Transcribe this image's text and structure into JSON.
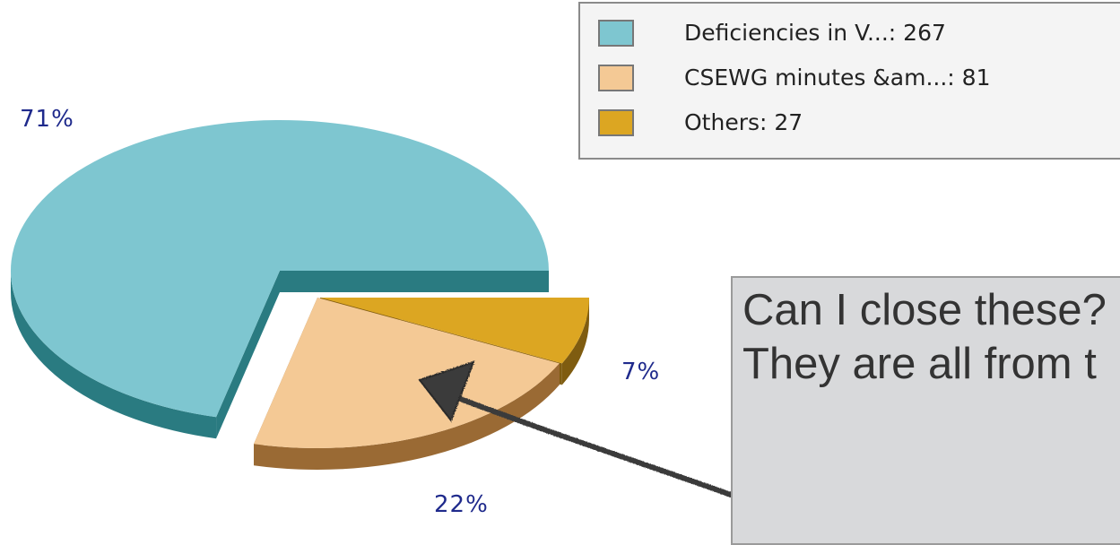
{
  "chart_data": {
    "type": "pie",
    "style": "3d-exploded",
    "slices": [
      {
        "label": "Deficiencies in V...",
        "value": 267,
        "percent_label": "71%",
        "color": "#7ec6d0",
        "dark": "#2a7b81"
      },
      {
        "label": "CSEWG minutes &am...",
        "value": 81,
        "percent_label": "22%",
        "color": "#f4c995",
        "dark": "#9a6a34"
      },
      {
        "label": "Others",
        "value": 27,
        "percent_label": "7%",
        "color": "#dca622",
        "dark": "#7f5c10"
      }
    ],
    "legend": {
      "position": "top-right",
      "entries": [
        "Deficiencies in V...: 267",
        "CSEWG minutes &am...: 81",
        "Others: 27"
      ]
    }
  },
  "callout": {
    "text": "Can I close these? They are all from t"
  }
}
